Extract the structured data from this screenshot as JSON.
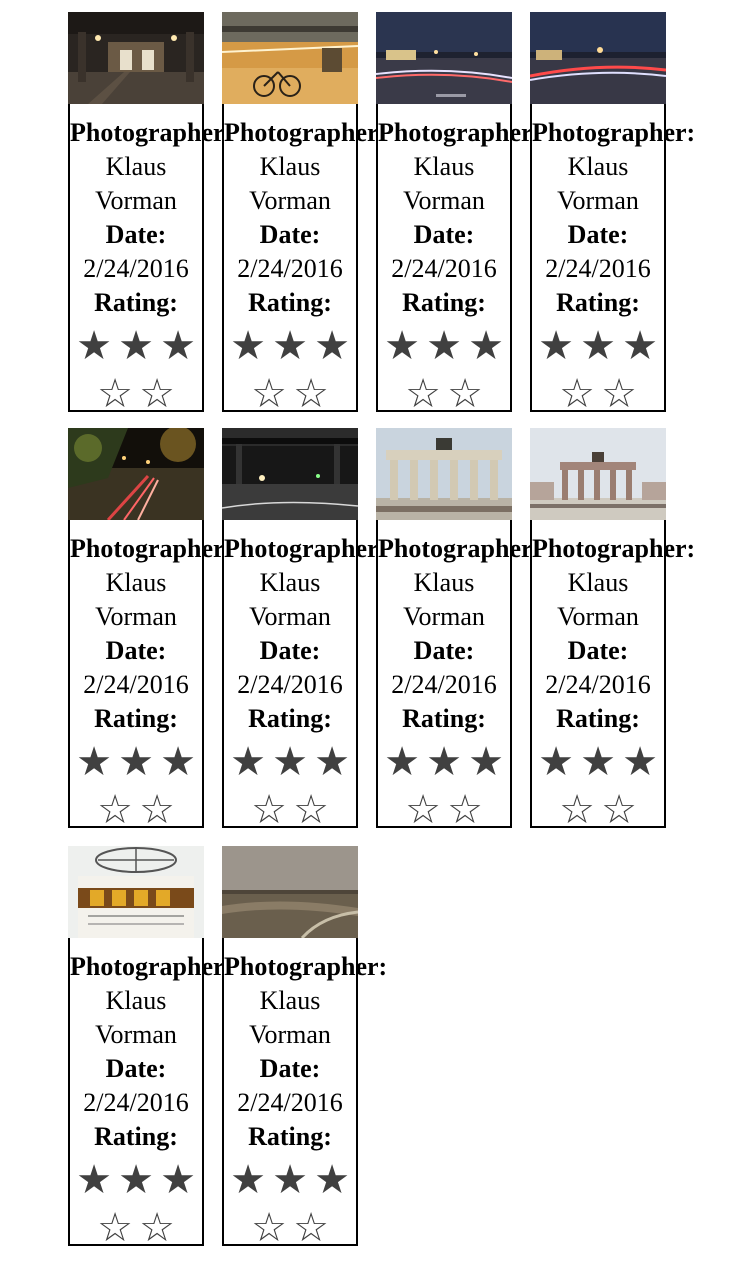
{
  "labels": {
    "photographer": "Photographer:",
    "date": "Date:",
    "rating": "Rating:"
  },
  "star_glyphs": {
    "filled": "★",
    "empty": "☆"
  },
  "cards": [
    {
      "photographer": "Klaus Vorman",
      "date": "2/24/2016",
      "rating": 3,
      "max_rating": 5,
      "scene": "subway-station"
    },
    {
      "photographer": "Klaus Vorman",
      "date": "2/24/2016",
      "rating": 3,
      "max_rating": 5,
      "scene": "bicycle-street"
    },
    {
      "photographer": "Klaus Vorman",
      "date": "2/24/2016",
      "rating": 3,
      "max_rating": 5,
      "scene": "night-traffic"
    },
    {
      "photographer": "Klaus Vorman",
      "date": "2/24/2016",
      "rating": 3,
      "max_rating": 5,
      "scene": "night-traffic-2"
    },
    {
      "photographer": "Klaus Vorman",
      "date": "2/24/2016",
      "rating": 3,
      "max_rating": 5,
      "scene": "night-avenue"
    },
    {
      "photographer": "Klaus Vorman",
      "date": "2/24/2016",
      "rating": 3,
      "max_rating": 5,
      "scene": "bridge-night"
    },
    {
      "photographer": "Klaus Vorman",
      "date": "2/24/2016",
      "rating": 3,
      "max_rating": 5,
      "scene": "brandenburg-gate"
    },
    {
      "photographer": "Klaus Vorman",
      "date": "2/24/2016",
      "rating": 3,
      "max_rating": 5,
      "scene": "brandenburg-gate-2"
    },
    {
      "photographer": "Klaus Vorman",
      "date": "2/24/2016",
      "rating": 3,
      "max_rating": 5,
      "scene": "world-clock"
    },
    {
      "photographer": "Klaus Vorman",
      "date": "2/24/2016",
      "rating": 3,
      "max_rating": 5,
      "scene": "landscape"
    }
  ]
}
